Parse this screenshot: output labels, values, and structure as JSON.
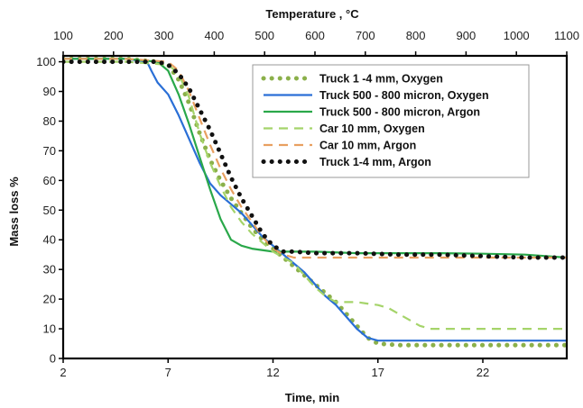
{
  "chart_data": {
    "type": "line",
    "xlabel": "Time, min",
    "ylabel": "Mass loss  %",
    "x2label": "Temperature , °C",
    "xlim": [
      2,
      26
    ],
    "ylim": [
      0,
      102
    ],
    "x2lim": [
      100,
      1100
    ],
    "xticks": [
      2,
      7,
      12,
      17,
      22
    ],
    "yticks": [
      0,
      10,
      20,
      30,
      40,
      50,
      60,
      70,
      80,
      90,
      100
    ],
    "x2ticks": [
      100,
      200,
      300,
      400,
      500,
      600,
      700,
      800,
      900,
      1000,
      1100
    ],
    "xtick_labels": [
      "2",
      "7",
      "12",
      "17",
      "22"
    ],
    "ytick_labels": [
      "0",
      "10",
      "20",
      "30",
      "40",
      "50",
      "60",
      "70",
      "80",
      "90",
      "100"
    ],
    "x2tick_labels": [
      "100",
      "200",
      "300",
      "400",
      "500",
      "600",
      "700",
      "800",
      "900",
      "1000",
      "1100"
    ],
    "grid": false,
    "legend": "top-right",
    "series": [
      {
        "name": "Truck 1 -4 mm, Oxygen",
        "color": "#8bb04a",
        "style": "dotted",
        "x": [
          2,
          5,
          6.5,
          7,
          7.5,
          8,
          8.5,
          9,
          9.5,
          10,
          10.5,
          11,
          11.5,
          12,
          12.5,
          13,
          13.5,
          14,
          14.5,
          15,
          15.5,
          16,
          16.5,
          17,
          18,
          20,
          22,
          24,
          26
        ],
        "y": [
          101,
          101,
          100,
          99,
          94,
          86,
          76,
          67,
          60,
          54,
          49,
          44,
          40,
          37,
          34,
          31,
          28,
          25,
          22,
          19,
          15,
          11,
          7,
          5,
          4.5,
          4.5,
          4.5,
          4.5,
          4.5
        ]
      },
      {
        "name": "Truck 500 - 800 micron, Oxygen",
        "color": "#2a6fd6",
        "style": "solid",
        "x": [
          2,
          5,
          6,
          6.2,
          6.5,
          7,
          7.5,
          8,
          8.5,
          9,
          9.5,
          10,
          10.5,
          11,
          11.5,
          12,
          12.5,
          13,
          13.5,
          14,
          14.5,
          15,
          15.5,
          16,
          16.5,
          17,
          18,
          20,
          22,
          24,
          26
        ],
        "y": [
          101,
          101,
          100,
          97,
          93,
          89,
          82,
          74,
          66,
          59,
          55,
          52,
          49,
          45,
          41,
          38,
          35,
          32,
          29,
          25,
          21,
          18,
          14,
          10,
          7,
          6,
          6,
          6,
          6,
          6,
          6
        ]
      },
      {
        "name": "Truck 500 - 800 micron, Argon",
        "color": "#2aa84a",
        "style": "solid",
        "x": [
          2,
          5,
          6.5,
          7,
          7.5,
          8,
          8.5,
          9,
          9.5,
          10,
          10.5,
          11,
          12,
          14,
          16,
          18,
          20,
          22,
          24,
          26
        ],
        "y": [
          101,
          101,
          100,
          97,
          89,
          79,
          68,
          57,
          47,
          40,
          38,
          37,
          36,
          36,
          35.5,
          35.5,
          35.5,
          35.3,
          35,
          34
        ]
      },
      {
        "name": "Car 10 mm, Oxygen",
        "color": "#a5d46a",
        "style": "dashed",
        "x": [
          2,
          5,
          7,
          7.5,
          8,
          8.5,
          9,
          9.5,
          10,
          10.5,
          11,
          11.5,
          12,
          13,
          13.5,
          14,
          14.5,
          15,
          16,
          16.5,
          17,
          17.5,
          18,
          18.5,
          19,
          19.5,
          20,
          22,
          24,
          26
        ],
        "y": [
          100,
          100,
          99,
          96,
          88,
          76,
          66,
          58,
          51,
          46,
          42,
          39,
          36,
          32,
          28,
          24,
          21,
          19,
          19,
          18.5,
          18,
          17,
          15,
          13,
          11,
          10,
          10,
          10,
          10,
          10
        ]
      },
      {
        "name": "Car 10 mm, Argon",
        "color": "#e8a060",
        "style": "dashed",
        "x": [
          2,
          5,
          7,
          7.5,
          8,
          8.5,
          9,
          9.5,
          10,
          10.5,
          11,
          11.5,
          12,
          12.5,
          13,
          14,
          16,
          18,
          20,
          22,
          24,
          26
        ],
        "y": [
          101,
          101,
          100,
          97,
          90,
          81,
          72,
          64,
          57,
          51,
          46,
          41,
          37,
          35,
          34,
          34,
          34,
          34,
          34,
          34,
          34,
          34
        ]
      },
      {
        "name": "Truck 1-4 mm, Argon",
        "color": "#111111",
        "style": "dotted",
        "x": [
          2,
          5,
          6.5,
          7,
          7.5,
          8,
          8.5,
          9,
          9.5,
          10,
          10.5,
          11,
          11.5,
          12,
          12.5,
          13,
          14,
          16,
          18,
          20,
          22,
          24,
          26
        ],
        "y": [
          100,
          100,
          100,
          99,
          96,
          91,
          84,
          77,
          69,
          61,
          54,
          48,
          42,
          38,
          36,
          36,
          35.5,
          35.5,
          35,
          35,
          34.5,
          34,
          34
        ]
      }
    ]
  }
}
